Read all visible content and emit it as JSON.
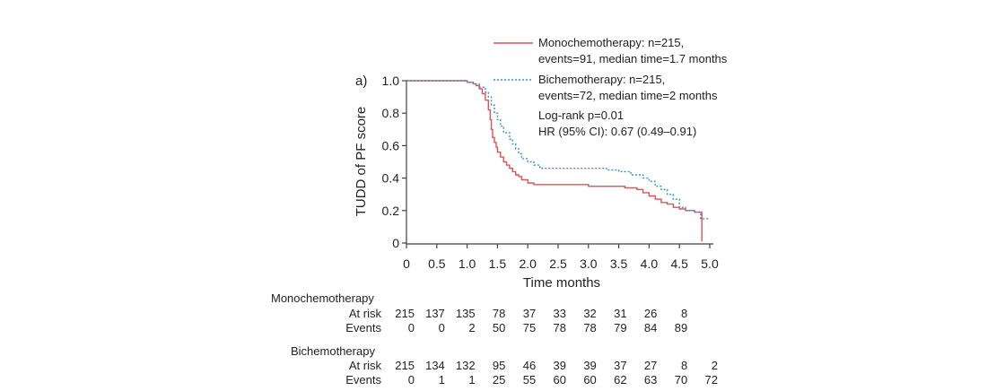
{
  "chart_data": {
    "type": "line",
    "panel_label": "a)",
    "xlabel": "Time months",
    "ylabel": "TUDD of PF score",
    "xlim": [
      0,
      5.0
    ],
    "ylim": [
      0,
      1.0
    ],
    "x_ticks": [
      "0",
      "0.5",
      "1.0",
      "1.5",
      "2.0",
      "2.5",
      "3.0",
      "3.5",
      "4.0",
      "4.5",
      "5.0"
    ],
    "y_ticks": [
      "0",
      "0.2",
      "0.4",
      "0.6",
      "0.8",
      "1.0"
    ],
    "grid": false,
    "legend_position": "top-right",
    "series": [
      {
        "name": "Monochemotherapy",
        "legend_line1": "Monochemotherapy: n=215,",
        "legend_line2": "events=91, median time=1.7 months",
        "color": "#e0505a",
        "style": "solid",
        "x": [
          0,
          0.95,
          1.0,
          1.05,
          1.1,
          1.15,
          1.2,
          1.25,
          1.3,
          1.35,
          1.38,
          1.4,
          1.42,
          1.45,
          1.48,
          1.5,
          1.55,
          1.6,
          1.65,
          1.7,
          1.75,
          1.8,
          1.85,
          1.9,
          2.0,
          2.1,
          2.5,
          3.0,
          3.4,
          3.6,
          3.8,
          3.9,
          4.0,
          4.1,
          4.2,
          4.3,
          4.4,
          4.5,
          4.6,
          4.75,
          4.85,
          4.87
        ],
        "y": [
          1.0,
          1.0,
          0.99,
          0.99,
          0.98,
          0.97,
          0.95,
          0.92,
          0.88,
          0.82,
          0.76,
          0.7,
          0.65,
          0.62,
          0.59,
          0.56,
          0.53,
          0.5,
          0.48,
          0.46,
          0.44,
          0.42,
          0.41,
          0.39,
          0.37,
          0.36,
          0.36,
          0.35,
          0.35,
          0.34,
          0.33,
          0.31,
          0.29,
          0.27,
          0.25,
          0.24,
          0.22,
          0.21,
          0.2,
          0.19,
          0.19,
          0.01
        ]
      },
      {
        "name": "Bichemotherapy",
        "legend_line1": "Bichemotherapy: n=215,",
        "legend_line2": "events=72, median time=2 months",
        "color": "#3b8fc4",
        "style": "dotted",
        "x": [
          0,
          0.95,
          1.0,
          1.1,
          1.2,
          1.3,
          1.35,
          1.4,
          1.45,
          1.5,
          1.55,
          1.6,
          1.7,
          1.75,
          1.8,
          1.85,
          1.9,
          2.0,
          2.1,
          2.2,
          2.5,
          3.0,
          3.3,
          3.5,
          3.7,
          3.9,
          4.0,
          4.1,
          4.2,
          4.3,
          4.4,
          4.5,
          4.6,
          4.75,
          4.85,
          5.0
        ],
        "y": [
          1.0,
          1.0,
          0.99,
          0.98,
          0.96,
          0.93,
          0.9,
          0.85,
          0.8,
          0.76,
          0.72,
          0.68,
          0.64,
          0.61,
          0.58,
          0.55,
          0.52,
          0.5,
          0.48,
          0.46,
          0.46,
          0.46,
          0.45,
          0.44,
          0.42,
          0.4,
          0.38,
          0.35,
          0.33,
          0.3,
          0.27,
          0.22,
          0.2,
          0.19,
          0.15,
          0.15
        ]
      }
    ],
    "annotations": [
      "Log-rank p=0.01",
      "HR (95% CI): 0.67 (0.49–0.91)"
    ],
    "risk_table": {
      "row_headers": [
        "At risk",
        "Events"
      ],
      "groups": [
        {
          "name": "Monochemotherapy",
          "at_risk": [
            "215",
            "137",
            "135",
            "78",
            "37",
            "33",
            "32",
            "31",
            "26",
            "8"
          ],
          "events": [
            "0",
            "0",
            "2",
            "50",
            "75",
            "78",
            "78",
            "79",
            "84",
            "89"
          ]
        },
        {
          "name": "Bichemotherapy",
          "at_risk": [
            "215",
            "134",
            "132",
            "95",
            "46",
            "39",
            "39",
            "37",
            "27",
            "8",
            "2"
          ],
          "events": [
            "0",
            "1",
            "1",
            "25",
            "55",
            "60",
            "60",
            "62",
            "63",
            "70",
            "72"
          ]
        }
      ]
    }
  }
}
